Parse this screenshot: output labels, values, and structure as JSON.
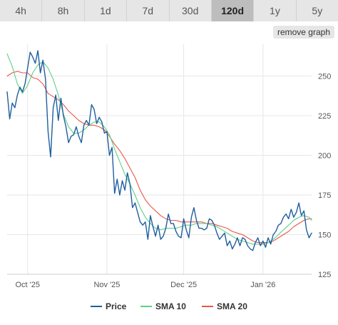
{
  "tabs": [
    {
      "label": "4h",
      "active": false
    },
    {
      "label": "8h",
      "active": false
    },
    {
      "label": "1d",
      "active": false
    },
    {
      "label": "7d",
      "active": false
    },
    {
      "label": "30d",
      "active": false
    },
    {
      "label": "120d",
      "active": true
    },
    {
      "label": "1y",
      "active": false
    },
    {
      "label": "5y",
      "active": false
    }
  ],
  "remove_graph_label": "remove graph",
  "colors": {
    "price": "#1f5e9e",
    "sma10": "#5fcf8a",
    "sma20": "#e8574c",
    "grid": "#e6e6e6",
    "axis": "#cccccc"
  },
  "chart_data": {
    "type": "line",
    "title": "",
    "xlabel": "",
    "ylabel": "",
    "ylim": [
      125,
      270
    ],
    "xlim": [
      "2025-09-23",
      "2026-01-20"
    ],
    "yticks": [
      125,
      150,
      175,
      200,
      225,
      250
    ],
    "xticks": [
      {
        "label": "Oct '25",
        "date": "2025-10-01"
      },
      {
        "label": "Nov '25",
        "date": "2025-11-01"
      },
      {
        "label": "Dec '25",
        "date": "2025-12-01"
      },
      {
        "label": "Jan '26",
        "date": "2026-01-01"
      }
    ],
    "grid": true,
    "legend": "bottom",
    "series": [
      {
        "name": "Price",
        "color": "#1f5e9e",
        "points": [
          [
            "2025-09-23",
            240
          ],
          [
            "2025-09-24",
            223
          ],
          [
            "2025-09-25",
            233
          ],
          [
            "2025-09-26",
            230
          ],
          [
            "2025-09-27",
            238
          ],
          [
            "2025-09-28",
            243
          ],
          [
            "2025-09-29",
            240
          ],
          [
            "2025-09-30",
            245
          ],
          [
            "2025-10-01",
            255
          ],
          [
            "2025-10-02",
            265
          ],
          [
            "2025-10-03",
            262
          ],
          [
            "2025-10-04",
            258
          ],
          [
            "2025-10-05",
            266
          ],
          [
            "2025-10-06",
            252
          ],
          [
            "2025-10-07",
            260
          ],
          [
            "2025-10-08",
            248
          ],
          [
            "2025-10-09",
            215
          ],
          [
            "2025-10-10",
            199
          ],
          [
            "2025-10-11",
            230
          ],
          [
            "2025-10-12",
            238
          ],
          [
            "2025-10-13",
            222
          ],
          [
            "2025-10-14",
            236
          ],
          [
            "2025-10-15",
            225
          ],
          [
            "2025-10-16",
            218
          ],
          [
            "2025-10-17",
            208
          ],
          [
            "2025-10-18",
            212
          ],
          [
            "2025-10-19",
            213
          ],
          [
            "2025-10-20",
            218
          ],
          [
            "2025-10-21",
            212
          ],
          [
            "2025-10-22",
            208
          ],
          [
            "2025-10-23",
            219
          ],
          [
            "2025-10-24",
            222
          ],
          [
            "2025-10-25",
            219
          ],
          [
            "2025-10-26",
            232
          ],
          [
            "2025-10-27",
            229
          ],
          [
            "2025-10-28",
            220
          ],
          [
            "2025-10-29",
            224
          ],
          [
            "2025-10-30",
            221
          ],
          [
            "2025-10-31",
            214
          ],
          [
            "2025-11-01",
            215
          ],
          [
            "2025-11-02",
            200
          ],
          [
            "2025-11-03",
            205
          ],
          [
            "2025-11-04",
            176
          ],
          [
            "2025-11-05",
            185
          ],
          [
            "2025-11-06",
            175
          ],
          [
            "2025-11-07",
            184
          ],
          [
            "2025-11-08",
            178
          ],
          [
            "2025-11-09",
            189
          ],
          [
            "2025-11-10",
            182
          ],
          [
            "2025-11-11",
            167
          ],
          [
            "2025-11-12",
            170
          ],
          [
            "2025-11-13",
            164
          ],
          [
            "2025-11-14",
            158
          ],
          [
            "2025-11-15",
            156
          ],
          [
            "2025-11-16",
            158
          ],
          [
            "2025-11-17",
            147
          ],
          [
            "2025-11-18",
            162
          ],
          [
            "2025-11-19",
            155
          ],
          [
            "2025-11-20",
            149
          ],
          [
            "2025-11-21",
            156
          ],
          [
            "2025-11-22",
            147
          ],
          [
            "2025-11-23",
            149
          ],
          [
            "2025-11-24",
            154
          ],
          [
            "2025-11-25",
            163
          ],
          [
            "2025-11-26",
            157
          ],
          [
            "2025-11-27",
            157
          ],
          [
            "2025-11-28",
            152
          ],
          [
            "2025-11-29",
            149
          ],
          [
            "2025-11-30",
            148
          ],
          [
            "2025-12-01",
            160
          ],
          [
            "2025-12-02",
            153
          ],
          [
            "2025-12-03",
            148
          ],
          [
            "2025-12-04",
            161
          ],
          [
            "2025-12-05",
            167
          ],
          [
            "2025-12-06",
            159
          ],
          [
            "2025-12-07",
            154
          ],
          [
            "2025-12-08",
            154
          ],
          [
            "2025-12-09",
            153
          ],
          [
            "2025-12-10",
            154
          ],
          [
            "2025-12-11",
            160
          ],
          [
            "2025-12-12",
            159
          ],
          [
            "2025-12-13",
            156
          ],
          [
            "2025-12-14",
            151
          ],
          [
            "2025-12-15",
            147
          ],
          [
            "2025-12-16",
            149
          ],
          [
            "2025-12-17",
            151
          ],
          [
            "2025-12-18",
            143
          ],
          [
            "2025-12-19",
            146
          ],
          [
            "2025-12-20",
            141
          ],
          [
            "2025-12-21",
            144
          ],
          [
            "2025-12-22",
            148
          ],
          [
            "2025-12-23",
            143
          ],
          [
            "2025-12-24",
            148
          ],
          [
            "2025-12-25",
            147
          ],
          [
            "2025-12-26",
            143
          ],
          [
            "2025-12-27",
            141
          ],
          [
            "2025-12-28",
            140
          ],
          [
            "2025-12-29",
            145
          ],
          [
            "2025-12-30",
            148
          ],
          [
            "2025-12-31",
            143
          ],
          [
            "2026-01-01",
            146
          ],
          [
            "2026-01-02",
            142
          ],
          [
            "2026-01-03",
            148
          ],
          [
            "2026-01-04",
            144
          ],
          [
            "2026-01-05",
            150
          ],
          [
            "2026-01-06",
            152
          ],
          [
            "2026-01-07",
            156
          ],
          [
            "2026-01-08",
            157
          ],
          [
            "2026-01-09",
            161
          ],
          [
            "2026-01-10",
            163
          ],
          [
            "2026-01-11",
            160
          ],
          [
            "2026-01-12",
            166
          ],
          [
            "2026-01-13",
            161
          ],
          [
            "2026-01-14",
            164
          ],
          [
            "2026-01-15",
            170
          ],
          [
            "2026-01-16",
            162
          ],
          [
            "2026-01-17",
            165
          ],
          [
            "2026-01-18",
            153
          ],
          [
            "2026-01-19",
            148
          ],
          [
            "2026-01-20",
            151
          ]
        ]
      },
      {
        "name": "SMA 10",
        "color": "#5fcf8a",
        "points": [
          [
            "2025-09-23",
            264
          ],
          [
            "2025-09-25",
            256
          ],
          [
            "2025-09-27",
            245
          ],
          [
            "2025-09-29",
            239
          ],
          [
            "2025-10-01",
            244
          ],
          [
            "2025-10-03",
            252
          ],
          [
            "2025-10-05",
            257
          ],
          [
            "2025-10-07",
            259
          ],
          [
            "2025-10-09",
            255
          ],
          [
            "2025-10-11",
            248
          ],
          [
            "2025-10-13",
            238
          ],
          [
            "2025-10-15",
            226
          ],
          [
            "2025-10-17",
            218
          ],
          [
            "2025-10-19",
            214
          ],
          [
            "2025-10-21",
            214
          ],
          [
            "2025-10-23",
            216
          ],
          [
            "2025-10-25",
            219
          ],
          [
            "2025-10-27",
            221
          ],
          [
            "2025-10-29",
            221
          ],
          [
            "2025-10-31",
            218
          ],
          [
            "2025-11-02",
            213
          ],
          [
            "2025-11-04",
            204
          ],
          [
            "2025-11-06",
            196
          ],
          [
            "2025-11-08",
            188
          ],
          [
            "2025-11-10",
            182
          ],
          [
            "2025-11-12",
            175
          ],
          [
            "2025-11-14",
            167
          ],
          [
            "2025-11-16",
            161
          ],
          [
            "2025-11-18",
            157
          ],
          [
            "2025-11-20",
            154
          ],
          [
            "2025-11-22",
            153
          ],
          [
            "2025-11-24",
            154
          ],
          [
            "2025-11-26",
            154
          ],
          [
            "2025-11-28",
            154
          ],
          [
            "2025-11-30",
            155
          ],
          [
            "2025-12-02",
            156
          ],
          [
            "2025-12-04",
            156
          ],
          [
            "2025-12-06",
            157
          ],
          [
            "2025-12-08",
            157
          ],
          [
            "2025-12-10",
            157
          ],
          [
            "2025-12-12",
            156
          ],
          [
            "2025-12-14",
            155
          ],
          [
            "2025-12-16",
            153
          ],
          [
            "2025-12-18",
            151
          ],
          [
            "2025-12-20",
            149
          ],
          [
            "2025-12-22",
            147
          ],
          [
            "2025-12-24",
            146
          ],
          [
            "2025-12-26",
            145
          ],
          [
            "2025-12-28",
            144
          ],
          [
            "2025-12-30",
            144
          ],
          [
            "2026-01-01",
            144
          ],
          [
            "2026-01-03",
            145
          ],
          [
            "2026-01-05",
            147
          ],
          [
            "2026-01-07",
            150
          ],
          [
            "2026-01-09",
            153
          ],
          [
            "2026-01-11",
            156
          ],
          [
            "2026-01-13",
            159
          ],
          [
            "2026-01-15",
            161
          ],
          [
            "2026-01-17",
            162
          ],
          [
            "2026-01-19",
            161
          ],
          [
            "2026-01-20",
            159
          ]
        ]
      },
      {
        "name": "SMA 20",
        "color": "#e8574c",
        "points": [
          [
            "2025-09-23",
            250
          ],
          [
            "2025-09-25",
            252
          ],
          [
            "2025-09-27",
            253
          ],
          [
            "2025-09-29",
            252
          ],
          [
            "2025-10-01",
            252
          ],
          [
            "2025-10-03",
            249
          ],
          [
            "2025-10-05",
            248
          ],
          [
            "2025-10-07",
            245
          ],
          [
            "2025-10-09",
            239
          ],
          [
            "2025-10-11",
            237
          ],
          [
            "2025-10-13",
            235
          ],
          [
            "2025-10-15",
            232
          ],
          [
            "2025-10-17",
            228
          ],
          [
            "2025-10-19",
            225
          ],
          [
            "2025-10-21",
            222
          ],
          [
            "2025-10-23",
            220
          ],
          [
            "2025-10-25",
            219
          ],
          [
            "2025-10-27",
            219
          ],
          [
            "2025-10-29",
            218
          ],
          [
            "2025-10-31",
            216
          ],
          [
            "2025-11-02",
            212
          ],
          [
            "2025-11-04",
            207
          ],
          [
            "2025-11-06",
            203
          ],
          [
            "2025-11-08",
            198
          ],
          [
            "2025-11-10",
            192
          ],
          [
            "2025-11-12",
            186
          ],
          [
            "2025-11-14",
            178
          ],
          [
            "2025-11-16",
            172
          ],
          [
            "2025-11-18",
            168
          ],
          [
            "2025-11-20",
            165
          ],
          [
            "2025-11-22",
            162
          ],
          [
            "2025-11-24",
            160
          ],
          [
            "2025-11-26",
            159
          ],
          [
            "2025-11-28",
            159
          ],
          [
            "2025-11-30",
            158
          ],
          [
            "2025-12-02",
            158
          ],
          [
            "2025-12-04",
            158
          ],
          [
            "2025-12-06",
            158
          ],
          [
            "2025-12-08",
            158
          ],
          [
            "2025-12-10",
            157
          ],
          [
            "2025-12-12",
            157
          ],
          [
            "2025-12-14",
            156
          ],
          [
            "2025-12-16",
            155
          ],
          [
            "2025-12-18",
            154
          ],
          [
            "2025-12-20",
            152
          ],
          [
            "2025-12-22",
            151
          ],
          [
            "2025-12-24",
            150
          ],
          [
            "2025-12-26",
            148
          ],
          [
            "2025-12-28",
            146
          ],
          [
            "2025-12-30",
            145
          ],
          [
            "2026-01-01",
            145
          ],
          [
            "2026-01-03",
            145
          ],
          [
            "2026-01-05",
            146
          ],
          [
            "2026-01-07",
            148
          ],
          [
            "2026-01-09",
            150
          ],
          [
            "2026-01-11",
            152
          ],
          [
            "2026-01-13",
            155
          ],
          [
            "2026-01-15",
            157
          ],
          [
            "2026-01-17",
            159
          ],
          [
            "2026-01-19",
            160
          ],
          [
            "2026-01-20",
            160
          ]
        ]
      }
    ]
  }
}
